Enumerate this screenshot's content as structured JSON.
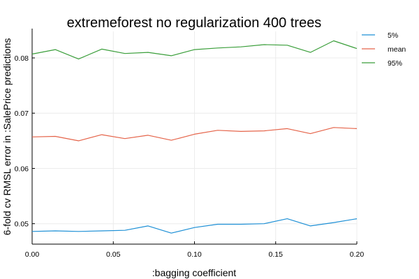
{
  "chart_data": {
    "type": "line",
    "title": "extremeforest no regularization 400 trees",
    "xlabel": ":bagging coefficient",
    "ylabel": "6-fold cv RMSL error in :SalePrice predictions",
    "xlim": [
      0.0,
      0.2
    ],
    "ylim": [
      0.0463,
      0.0848
    ],
    "xticks": [
      0.0,
      0.05,
      0.1,
      0.15,
      0.2
    ],
    "xtick_labels": [
      "0.00",
      "0.05",
      "0.10",
      "0.15",
      "0.20"
    ],
    "yticks": [
      0.05,
      0.06,
      0.07,
      0.08
    ],
    "ytick_labels": [
      "0.05",
      "0.06",
      "0.07",
      "0.08"
    ],
    "grid": true,
    "legend_position": "top-right outside plot",
    "x": [
      0.0,
      0.0143,
      0.0286,
      0.0429,
      0.0571,
      0.0714,
      0.0857,
      0.1,
      0.1143,
      0.1286,
      0.1429,
      0.1571,
      0.1714,
      0.1857,
      0.2
    ],
    "series": [
      {
        "name": "5%",
        "color": "#1e90d6",
        "values": [
          0.0486,
          0.0487,
          0.0486,
          0.0487,
          0.0488,
          0.0496,
          0.0483,
          0.0493,
          0.0499,
          0.0499,
          0.05,
          0.0509,
          0.0496,
          0.0502,
          0.0509
        ]
      },
      {
        "name": "mean",
        "color": "#e5644a",
        "values": [
          0.0657,
          0.0658,
          0.065,
          0.0661,
          0.0654,
          0.066,
          0.0651,
          0.0662,
          0.0669,
          0.0667,
          0.0668,
          0.0672,
          0.0663,
          0.0674,
          0.0672
        ]
      },
      {
        "name": "95%",
        "color": "#3a9e3a",
        "values": [
          0.0807,
          0.0815,
          0.0798,
          0.0816,
          0.0808,
          0.081,
          0.0804,
          0.0815,
          0.0818,
          0.082,
          0.0824,
          0.0823,
          0.081,
          0.0831,
          0.0817
        ]
      }
    ]
  }
}
